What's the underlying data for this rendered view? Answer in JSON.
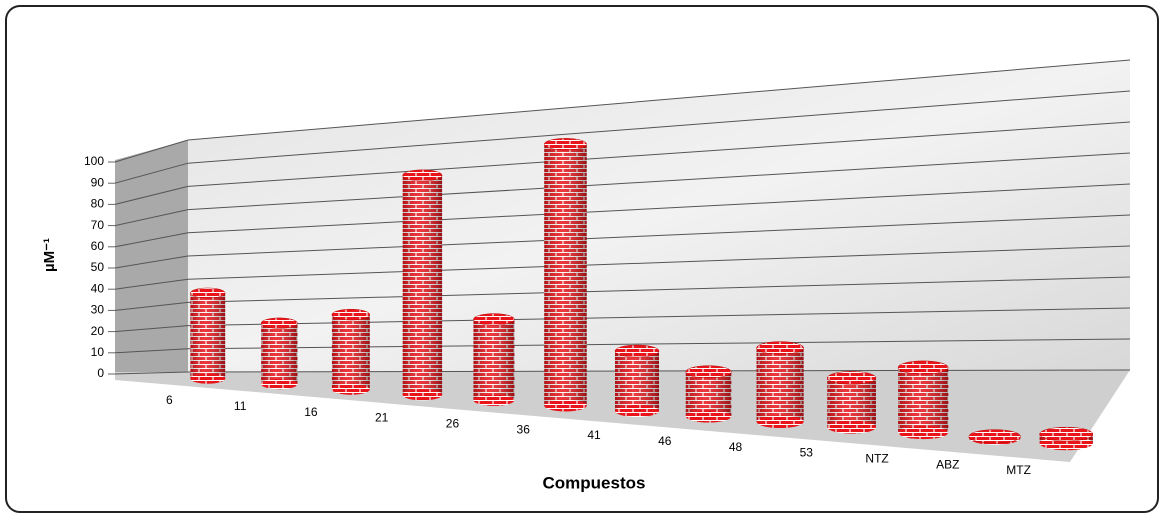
{
  "chart_data": {
    "type": "bar",
    "x_label": "Compuestos",
    "y_label": "µM⁻¹",
    "categories": [
      "6",
      "11",
      "16",
      "21",
      "26",
      "36",
      "41",
      "46",
      "48",
      "53",
      "NTZ",
      "ABZ",
      "MTZ"
    ],
    "values": [
      36,
      25,
      30,
      86,
      31,
      98,
      22,
      16,
      26,
      17,
      22,
      0.5,
      3
    ],
    "color": "#e8161b",
    "ylim": [
      0,
      100
    ],
    "yticks": [
      0,
      10,
      20,
      30,
      40,
      50,
      60,
      70,
      80,
      90,
      100
    ],
    "grid": true
  }
}
